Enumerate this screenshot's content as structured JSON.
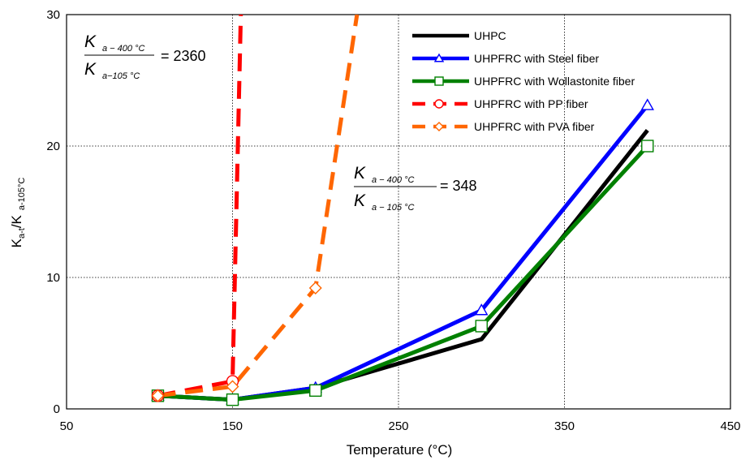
{
  "chart_data": {
    "type": "line",
    "xlabel": "Temperature (°C)",
    "ylabel": "K",
    "ylabel_sub1": "a-t",
    "ylabel_mid": "/K",
    "ylabel_sub2": "a-105°C",
    "xlim": [
      50,
      450
    ],
    "ylim": [
      0,
      30
    ],
    "x_ticks": [
      50,
      150,
      250,
      350,
      450
    ],
    "y_ticks": [
      0,
      10,
      20,
      30
    ],
    "grid": true,
    "legend_position": "top-right",
    "series": [
      {
        "name": "UHPC",
        "color": "#000000",
        "style": "solid",
        "marker": "none",
        "x": [
          105,
          150,
          200,
          300,
          400
        ],
        "y": [
          1.0,
          0.7,
          1.6,
          5.3,
          21.2
        ]
      },
      {
        "name": "UHPFRC with Steel fiber",
        "color": "#0000ff",
        "style": "solid",
        "marker": "triangle",
        "x": [
          105,
          150,
          200,
          300,
          400
        ],
        "y": [
          1.0,
          0.7,
          1.6,
          7.5,
          23.1
        ]
      },
      {
        "name": "UHPFRC with Wollastonite fiber",
        "color": "#008000",
        "style": "solid",
        "marker": "square",
        "x": [
          105,
          150,
          200,
          300,
          400
        ],
        "y": [
          1.0,
          0.7,
          1.4,
          6.3,
          20.0
        ]
      },
      {
        "name": "UHPFRC with PP fiber",
        "color": "#ff0000",
        "style": "dashed",
        "marker": "circle",
        "x": [
          105,
          150,
          155
        ],
        "y": [
          1.0,
          2.1,
          30.0
        ]
      },
      {
        "name": "UHPFRC with PVA fiber",
        "color": "#ff6600",
        "style": "dashed",
        "marker": "diamond",
        "x": [
          105,
          150,
          200,
          225
        ],
        "y": [
          1.0,
          1.7,
          9.2,
          30.0
        ]
      }
    ],
    "annotations": [
      {
        "num_main": "K",
        "num_sub": "a − 400 °C",
        "den_main": "K",
        "den_sub": "a−105 °C",
        "value": "= 2360"
      },
      {
        "num_main": "K",
        "num_sub": "a − 400 °C",
        "den_main": "K",
        "den_sub": "a − 105 °C",
        "value": "= 348"
      }
    ]
  }
}
